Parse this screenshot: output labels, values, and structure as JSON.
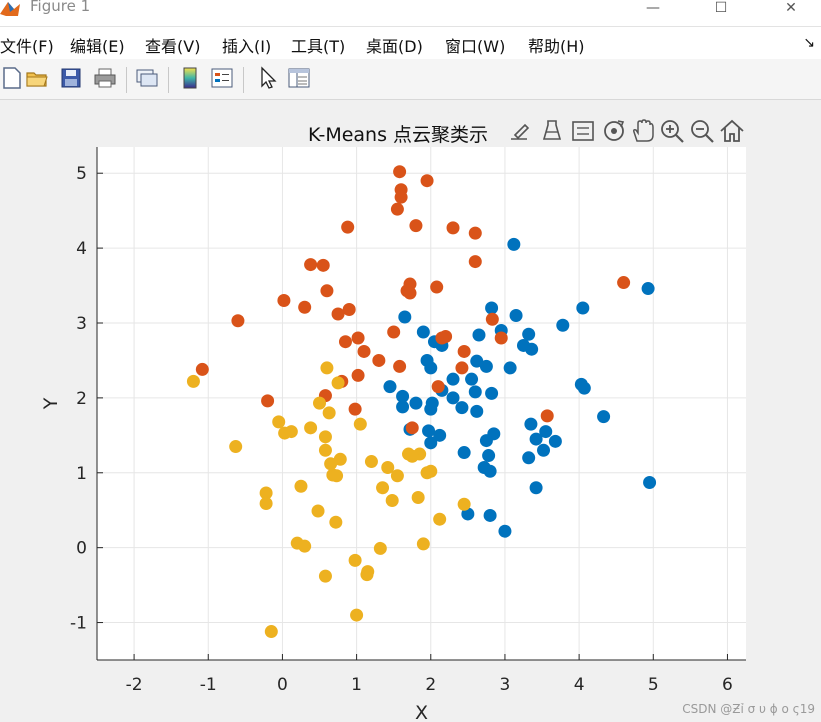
{
  "window": {
    "title": "Figure 1",
    "minimize_glyph": "—",
    "maximize_glyph": "☐",
    "close_glyph": "✕"
  },
  "menubar": {
    "items": [
      {
        "label": "文件(F)"
      },
      {
        "label": "编辑(E)"
      },
      {
        "label": "查看(V)"
      },
      {
        "label": "插入(I)"
      },
      {
        "label": "工具(T)"
      },
      {
        "label": "桌面(D)"
      },
      {
        "label": "窗口(W)"
      },
      {
        "label": "帮助(H)"
      }
    ],
    "overflow_glyph": "↘"
  },
  "toolbar": {
    "icons": [
      "new-figure-icon",
      "open-file-icon",
      "save-icon",
      "print-icon",
      "link-plot-icon",
      "colorbar-icon",
      "legend-icon",
      "pointer-icon",
      "property-inspector-icon"
    ]
  },
  "axes_toolbar": {
    "icons": [
      "brush-icon",
      "data-tips-icon",
      "linked-icon",
      "rotate-icon",
      "pan-icon",
      "zoom-in-icon",
      "zoom-out-icon",
      "home-icon"
    ]
  },
  "watermark": "CSDN @Ƶỉ σ υ ϕ ο ς19",
  "colors": {
    "cluster1": "#0072BD",
    "cluster2": "#D95319",
    "cluster3": "#EDB120",
    "grid": "#e6e6e6",
    "axes_bg": "#ffffff"
  },
  "chart_data": {
    "type": "scatter",
    "title": "K-Means 点云聚类示",
    "xlabel": "X",
    "ylabel": "Y",
    "xlim": [
      -2.5,
      6.25
    ],
    "ylim": [
      -1.5,
      5.35
    ],
    "xticks": [
      -2,
      -1,
      0,
      1,
      2,
      3,
      4,
      5,
      6
    ],
    "yticks": [
      -1,
      0,
      1,
      2,
      3,
      4,
      5
    ],
    "grid": true,
    "series": [
      {
        "color": "#0072BD",
        "points": [
          [
            3.12,
            4.05
          ],
          [
            4.93,
            3.46
          ],
          [
            4.05,
            3.2
          ],
          [
            2.82,
            3.2
          ],
          [
            3.15,
            3.1
          ],
          [
            1.65,
            3.08
          ],
          [
            2.95,
            2.9
          ],
          [
            3.78,
            2.97
          ],
          [
            1.9,
            2.88
          ],
          [
            2.65,
            2.84
          ],
          [
            3.32,
            2.85
          ],
          [
            2.05,
            2.75
          ],
          [
            2.15,
            2.7
          ],
          [
            3.25,
            2.7
          ],
          [
            3.36,
            2.65
          ],
          [
            1.95,
            2.5
          ],
          [
            2.62,
            2.49
          ],
          [
            2.75,
            2.42
          ],
          [
            3.07,
            2.4
          ],
          [
            2.0,
            2.4
          ],
          [
            2.55,
            2.25
          ],
          [
            2.3,
            2.25
          ],
          [
            4.03,
            2.18
          ],
          [
            1.45,
            2.15
          ],
          [
            4.07,
            2.13
          ],
          [
            2.15,
            2.1
          ],
          [
            2.6,
            2.08
          ],
          [
            2.82,
            2.06
          ],
          [
            1.62,
            2.02
          ],
          [
            2.3,
            2.0
          ],
          [
            1.8,
            1.93
          ],
          [
            2.02,
            1.93
          ],
          [
            1.62,
            1.88
          ],
          [
            2.42,
            1.87
          ],
          [
            2.0,
            1.85
          ],
          [
            2.62,
            1.82
          ],
          [
            4.33,
            1.75
          ],
          [
            3.35,
            1.65
          ],
          [
            1.72,
            1.58
          ],
          [
            1.97,
            1.56
          ],
          [
            3.55,
            1.55
          ],
          [
            2.85,
            1.52
          ],
          [
            2.12,
            1.5
          ],
          [
            3.42,
            1.45
          ],
          [
            2.75,
            1.43
          ],
          [
            3.68,
            1.42
          ],
          [
            2.0,
            1.4
          ],
          [
            3.52,
            1.3
          ],
          [
            2.45,
            1.27
          ],
          [
            2.78,
            1.23
          ],
          [
            3.32,
            1.2
          ],
          [
            2.72,
            1.07
          ],
          [
            2.8,
            1.02
          ],
          [
            4.95,
            0.87
          ],
          [
            3.42,
            0.8
          ],
          [
            2.5,
            0.45
          ],
          [
            2.8,
            0.43
          ],
          [
            3.0,
            0.22
          ]
        ]
      },
      {
        "color": "#D95319",
        "points": [
          [
            1.58,
            5.02
          ],
          [
            1.95,
            4.9
          ],
          [
            1.6,
            4.78
          ],
          [
            1.6,
            4.68
          ],
          [
            1.55,
            4.52
          ],
          [
            1.8,
            4.3
          ],
          [
            0.88,
            4.28
          ],
          [
            2.3,
            4.27
          ],
          [
            2.6,
            4.2
          ],
          [
            2.6,
            3.82
          ],
          [
            0.38,
            3.78
          ],
          [
            0.55,
            3.77
          ],
          [
            4.6,
            3.54
          ],
          [
            1.72,
            3.52
          ],
          [
            2.08,
            3.48
          ],
          [
            1.68,
            3.43
          ],
          [
            0.6,
            3.43
          ],
          [
            1.72,
            3.4
          ],
          [
            0.02,
            3.3
          ],
          [
            0.3,
            3.21
          ],
          [
            0.9,
            3.18
          ],
          [
            0.75,
            3.12
          ],
          [
            -0.6,
            3.03
          ],
          [
            2.83,
            3.05
          ],
          [
            1.5,
            2.88
          ],
          [
            2.2,
            2.82
          ],
          [
            2.15,
            2.8
          ],
          [
            1.02,
            2.8
          ],
          [
            2.95,
            2.8
          ],
          [
            0.85,
            2.75
          ],
          [
            1.1,
            2.62
          ],
          [
            2.45,
            2.62
          ],
          [
            1.3,
            2.5
          ],
          [
            1.58,
            2.42
          ],
          [
            2.42,
            2.4
          ],
          [
            -1.08,
            2.38
          ],
          [
            1.02,
            2.3
          ],
          [
            0.8,
            2.22
          ],
          [
            2.1,
            2.15
          ],
          [
            0.58,
            2.03
          ],
          [
            -0.2,
            1.96
          ],
          [
            0.98,
            1.85
          ],
          [
            3.57,
            1.76
          ],
          [
            1.75,
            1.6
          ]
        ]
      },
      {
        "color": "#EDB120",
        "points": [
          [
            0.6,
            2.4
          ],
          [
            -1.2,
            2.22
          ],
          [
            0.75,
            2.2
          ],
          [
            0.5,
            1.93
          ],
          [
            0.63,
            1.8
          ],
          [
            -0.05,
            1.68
          ],
          [
            1.05,
            1.65
          ],
          [
            0.38,
            1.6
          ],
          [
            0.12,
            1.55
          ],
          [
            0.03,
            1.53
          ],
          [
            0.58,
            1.48
          ],
          [
            -0.63,
            1.35
          ],
          [
            0.58,
            1.3
          ],
          [
            1.7,
            1.25
          ],
          [
            1.85,
            1.25
          ],
          [
            1.75,
            1.22
          ],
          [
            0.78,
            1.18
          ],
          [
            1.2,
            1.15
          ],
          [
            0.65,
            1.12
          ],
          [
            1.42,
            1.07
          ],
          [
            2.0,
            1.02
          ],
          [
            1.95,
            1.0
          ],
          [
            0.68,
            0.97
          ],
          [
            0.73,
            0.96
          ],
          [
            1.55,
            0.96
          ],
          [
            0.25,
            0.82
          ],
          [
            1.35,
            0.8
          ],
          [
            -0.22,
            0.73
          ],
          [
            1.83,
            0.67
          ],
          [
            1.48,
            0.63
          ],
          [
            -0.22,
            0.59
          ],
          [
            2.45,
            0.58
          ],
          [
            0.48,
            0.49
          ],
          [
            2.12,
            0.38
          ],
          [
            0.72,
            0.34
          ],
          [
            0.2,
            0.06
          ],
          [
            1.9,
            0.05
          ],
          [
            0.3,
            0.02
          ],
          [
            1.32,
            -0.01
          ],
          [
            0.98,
            -0.17
          ],
          [
            1.15,
            -0.32
          ],
          [
            1.14,
            -0.36
          ],
          [
            0.58,
            -0.38
          ],
          [
            1.0,
            -0.9
          ],
          [
            -0.15,
            -1.12
          ]
        ]
      }
    ]
  }
}
